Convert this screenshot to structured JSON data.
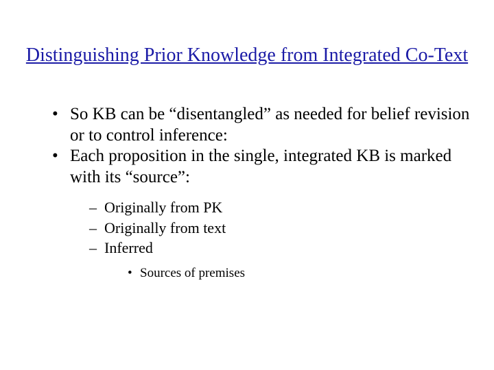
{
  "title": "Distinguishing Prior Knowledge from Integrated Co-Text",
  "title_color": "#1a1aa6",
  "title_fontsize": 28,
  "body_fontsize": 25,
  "sub_fontsize": 22,
  "subsub_fontsize": 19,
  "background_color": "#ffffff",
  "text_color": "#000000",
  "bullets": {
    "b0": "So KB can be “disentangled” as needed for belief revision or to control inference:",
    "b1": "Each proposition in the single, integrated KB is marked with its “source”:",
    "sub0": "Originally from PK",
    "sub1": "Originally from text",
    "sub2": "Inferred",
    "subsub0": "Sources of premises"
  }
}
